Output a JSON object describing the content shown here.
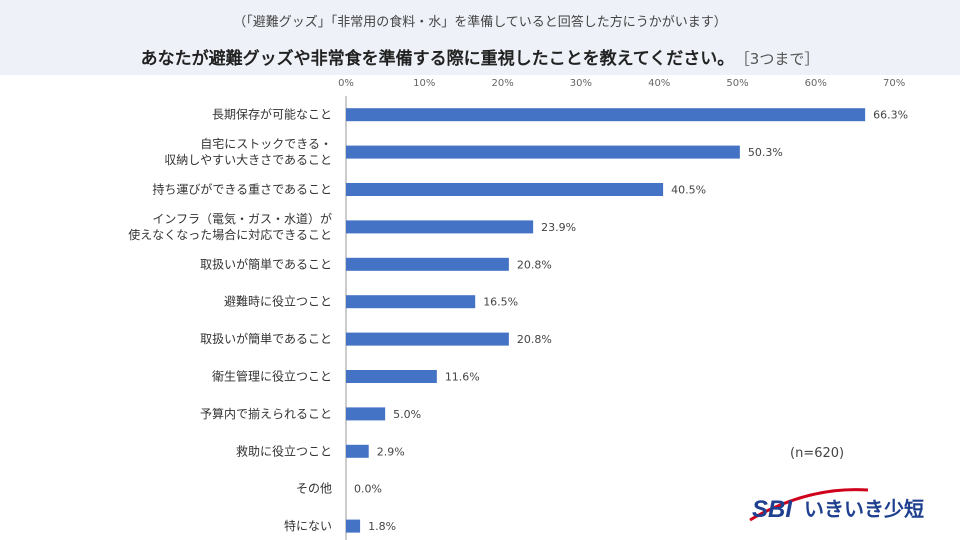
{
  "header": {
    "subtitle": "（「避難グッズ」「非常用の食料・水」を準備していると回答した方にうかがいます）",
    "title": "あなたが避難グッズや非常食を準備する際に重視したことを教えてください。",
    "note": "［3つまで］"
  },
  "sample_size": "(n=620)",
  "logo": {
    "brand": "SBI",
    "name": "いきいき少短"
  },
  "colors": {
    "bar": "#4472c4",
    "header_band": "#eef2f8",
    "logo": "#1f3f8f"
  },
  "chart_data": {
    "type": "bar",
    "orientation": "horizontal",
    "title": "",
    "xlabel": "",
    "ylabel": "",
    "xlim": [
      0,
      70
    ],
    "x_ticks": [
      "0%",
      "10%",
      "20%",
      "30%",
      "40%",
      "50%",
      "60%",
      "70%"
    ],
    "grid": false,
    "categories": [
      [
        "長期保存が可能なこと"
      ],
      [
        "自宅にストックできる・",
        "収納しやすい大きさであること"
      ],
      [
        "持ち運びができる重さであること"
      ],
      [
        "インフラ（電気・ガス・水道）が",
        "使えなくなった場合に対応できること"
      ],
      [
        "取扱いが簡単であること"
      ],
      [
        "避難時に役立つこと"
      ],
      [
        "取扱いが簡単であること"
      ],
      [
        "衛生管理に役立つこと"
      ],
      [
        "予算内で揃えられること"
      ],
      [
        "救助に役立つこと"
      ],
      [
        "その他"
      ],
      [
        "特にない"
      ]
    ],
    "values": [
      66.3,
      50.3,
      40.5,
      23.9,
      20.8,
      16.5,
      20.8,
      11.6,
      5.0,
      2.9,
      0.0,
      1.8
    ],
    "value_labels": [
      "66.3%",
      "50.3%",
      "40.5%",
      "23.9%",
      "20.8%",
      "16.5%",
      "20.8%",
      "11.6%",
      "5.0%",
      "2.9%",
      "0.0%",
      "1.8%"
    ]
  }
}
